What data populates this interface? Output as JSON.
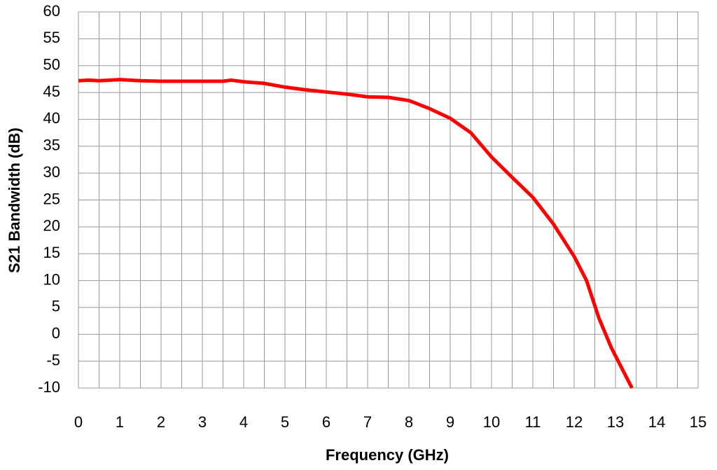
{
  "chart_data": {
    "type": "line",
    "x_label": "Frequency (GHz)",
    "y_label": "S21 Bandwidth (dB)",
    "x": [
      0,
      0.25,
      0.5,
      1,
      1.5,
      2,
      2.5,
      3,
      3.5,
      3.7,
      4,
      4.5,
      5,
      5.5,
      6,
      6.5,
      7,
      7.5,
      8,
      8.5,
      9,
      9.5,
      10,
      10.5,
      11,
      11.5,
      12,
      12.3,
      12.6,
      12.9,
      13.2,
      13.4
    ],
    "series": [
      {
        "color": "#ff0000",
        "values": [
          47.2,
          47.3,
          47.2,
          47.4,
          47.2,
          47.1,
          47.1,
          47.1,
          47.1,
          47.3,
          47.0,
          46.7,
          46.0,
          45.5,
          45.1,
          44.7,
          44.2,
          44.1,
          43.5,
          42.0,
          40.2,
          37.5,
          33.0,
          29.2,
          25.5,
          20.5,
          14.5,
          10.0,
          3.0,
          -2.5,
          -7.0,
          -10.0
        ]
      }
    ],
    "xlim": [
      0,
      15
    ],
    "ylim": [
      -10,
      60
    ],
    "xticks": [
      0,
      1,
      2,
      3,
      4,
      5,
      6,
      7,
      8,
      9,
      10,
      11,
      12,
      13,
      14,
      15
    ],
    "yticks": [
      -10,
      -5,
      0,
      5,
      10,
      15,
      20,
      25,
      30,
      35,
      40,
      45,
      50,
      55,
      60
    ],
    "xgrid": [
      0,
      0.5,
      1,
      1.5,
      2,
      2.5,
      3,
      3.5,
      4,
      4.5,
      5,
      5.5,
      6,
      6.5,
      7,
      7.5,
      8,
      8.5,
      9,
      9.5,
      10,
      10.5,
      11,
      11.5,
      12,
      12.5,
      13,
      13.5,
      14,
      14.5,
      15
    ],
    "grid": true
  }
}
